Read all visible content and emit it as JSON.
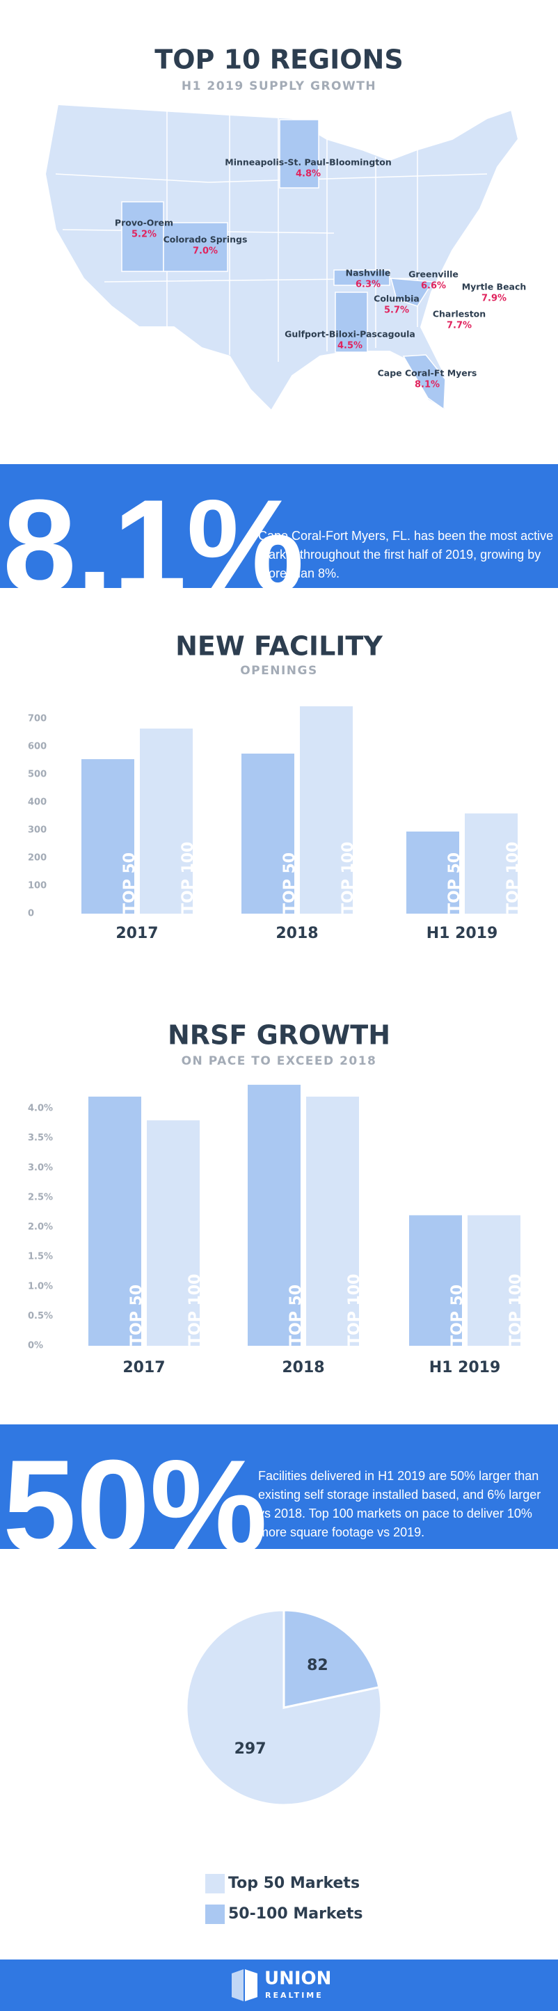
{
  "header": {
    "title": "TOP 10 REGIONS",
    "subtitle": "H1 2019 SUPPLY GROWTH"
  },
  "regions": [
    {
      "name": "Minneapolis-St. Paul-Bloomington",
      "growth": "4.8%"
    },
    {
      "name": "Provo-Orem",
      "growth": "5.2%"
    },
    {
      "name": "Colorado Springs",
      "growth": "7.0%"
    },
    {
      "name": "Nashville",
      "growth": "6.3%"
    },
    {
      "name": "Greenville",
      "growth": "6.6%"
    },
    {
      "name": "Myrtle Beach",
      "growth": "7.9%"
    },
    {
      "name": "Columbia",
      "growth": "5.7%"
    },
    {
      "name": "Charleston",
      "growth": "7.7%"
    },
    {
      "name": "Gulfport-Biloxi-Pascagoula",
      "growth": "4.5%"
    },
    {
      "name": "Cape Coral-Ft Myers",
      "growth": "8.1%"
    }
  ],
  "callouts": [
    {
      "figure": "8.1%",
      "text": "Cape Coral-Fort Myers, FL. has been the most active market throughout the first half of 2019, growing by more than 8%."
    },
    {
      "figure": "50%",
      "text": "Facilities delivered in H1 2019 are 50% larger than existing self storage installed based, and 6% larger vs 2018.  Top 100 markets on pace to deliver 10% more square footage vs 2019."
    }
  ],
  "chart_data": [
    {
      "type": "bar",
      "title": "NEW FACILITY",
      "subtitle": "OPENINGS",
      "categories": [
        "2017",
        "2018",
        "H1 2019"
      ],
      "series": [
        {
          "name": "TOP 50",
          "color": "#aac8f2",
          "values": [
            555,
            575,
            295
          ]
        },
        {
          "name": "TOP 100",
          "color": "#d6e4f8",
          "values": [
            665,
            745,
            360
          ]
        }
      ],
      "ylim": [
        0,
        750
      ],
      "yticks": [
        0,
        100,
        200,
        300,
        400,
        500,
        600,
        700
      ],
      "grid": false
    },
    {
      "type": "bar",
      "title": "NRSF GROWTH",
      "subtitle": "ON PACE TO EXCEED 2018",
      "categories": [
        "2017",
        "2018",
        "H1 2019"
      ],
      "series": [
        {
          "name": "TOP 50",
          "color": "#aac8f2",
          "values": [
            4.2,
            4.4,
            2.2
          ]
        },
        {
          "name": "TOP 100",
          "color": "#d6e4f8",
          "values": [
            3.8,
            4.2,
            2.2
          ]
        }
      ],
      "ylim": [
        0,
        4.5
      ],
      "yticks": [
        {
          "value": 0,
          "label": "0%"
        },
        {
          "value": 0.5,
          "label": "0.5%"
        },
        {
          "value": 1,
          "label": "1.0%"
        },
        {
          "value": 1.5,
          "label": "1.5%"
        },
        {
          "value": 2,
          "label": "2.0%"
        },
        {
          "value": 2.5,
          "label": "2.5%"
        },
        {
          "value": 3,
          "label": "3.0%"
        },
        {
          "value": 3.5,
          "label": "3.5%"
        },
        {
          "value": 4,
          "label": "4.0%"
        }
      ],
      "grid": false
    },
    {
      "type": "pie",
      "categories": [
        "Top 50 Markets",
        "50-100 Markets"
      ],
      "values": [
        297,
        82
      ],
      "colors": [
        "#d6e4f8",
        "#aac8f2"
      ]
    }
  ],
  "footer": {
    "brand": "UNION",
    "tagline": "REALTIME"
  }
}
